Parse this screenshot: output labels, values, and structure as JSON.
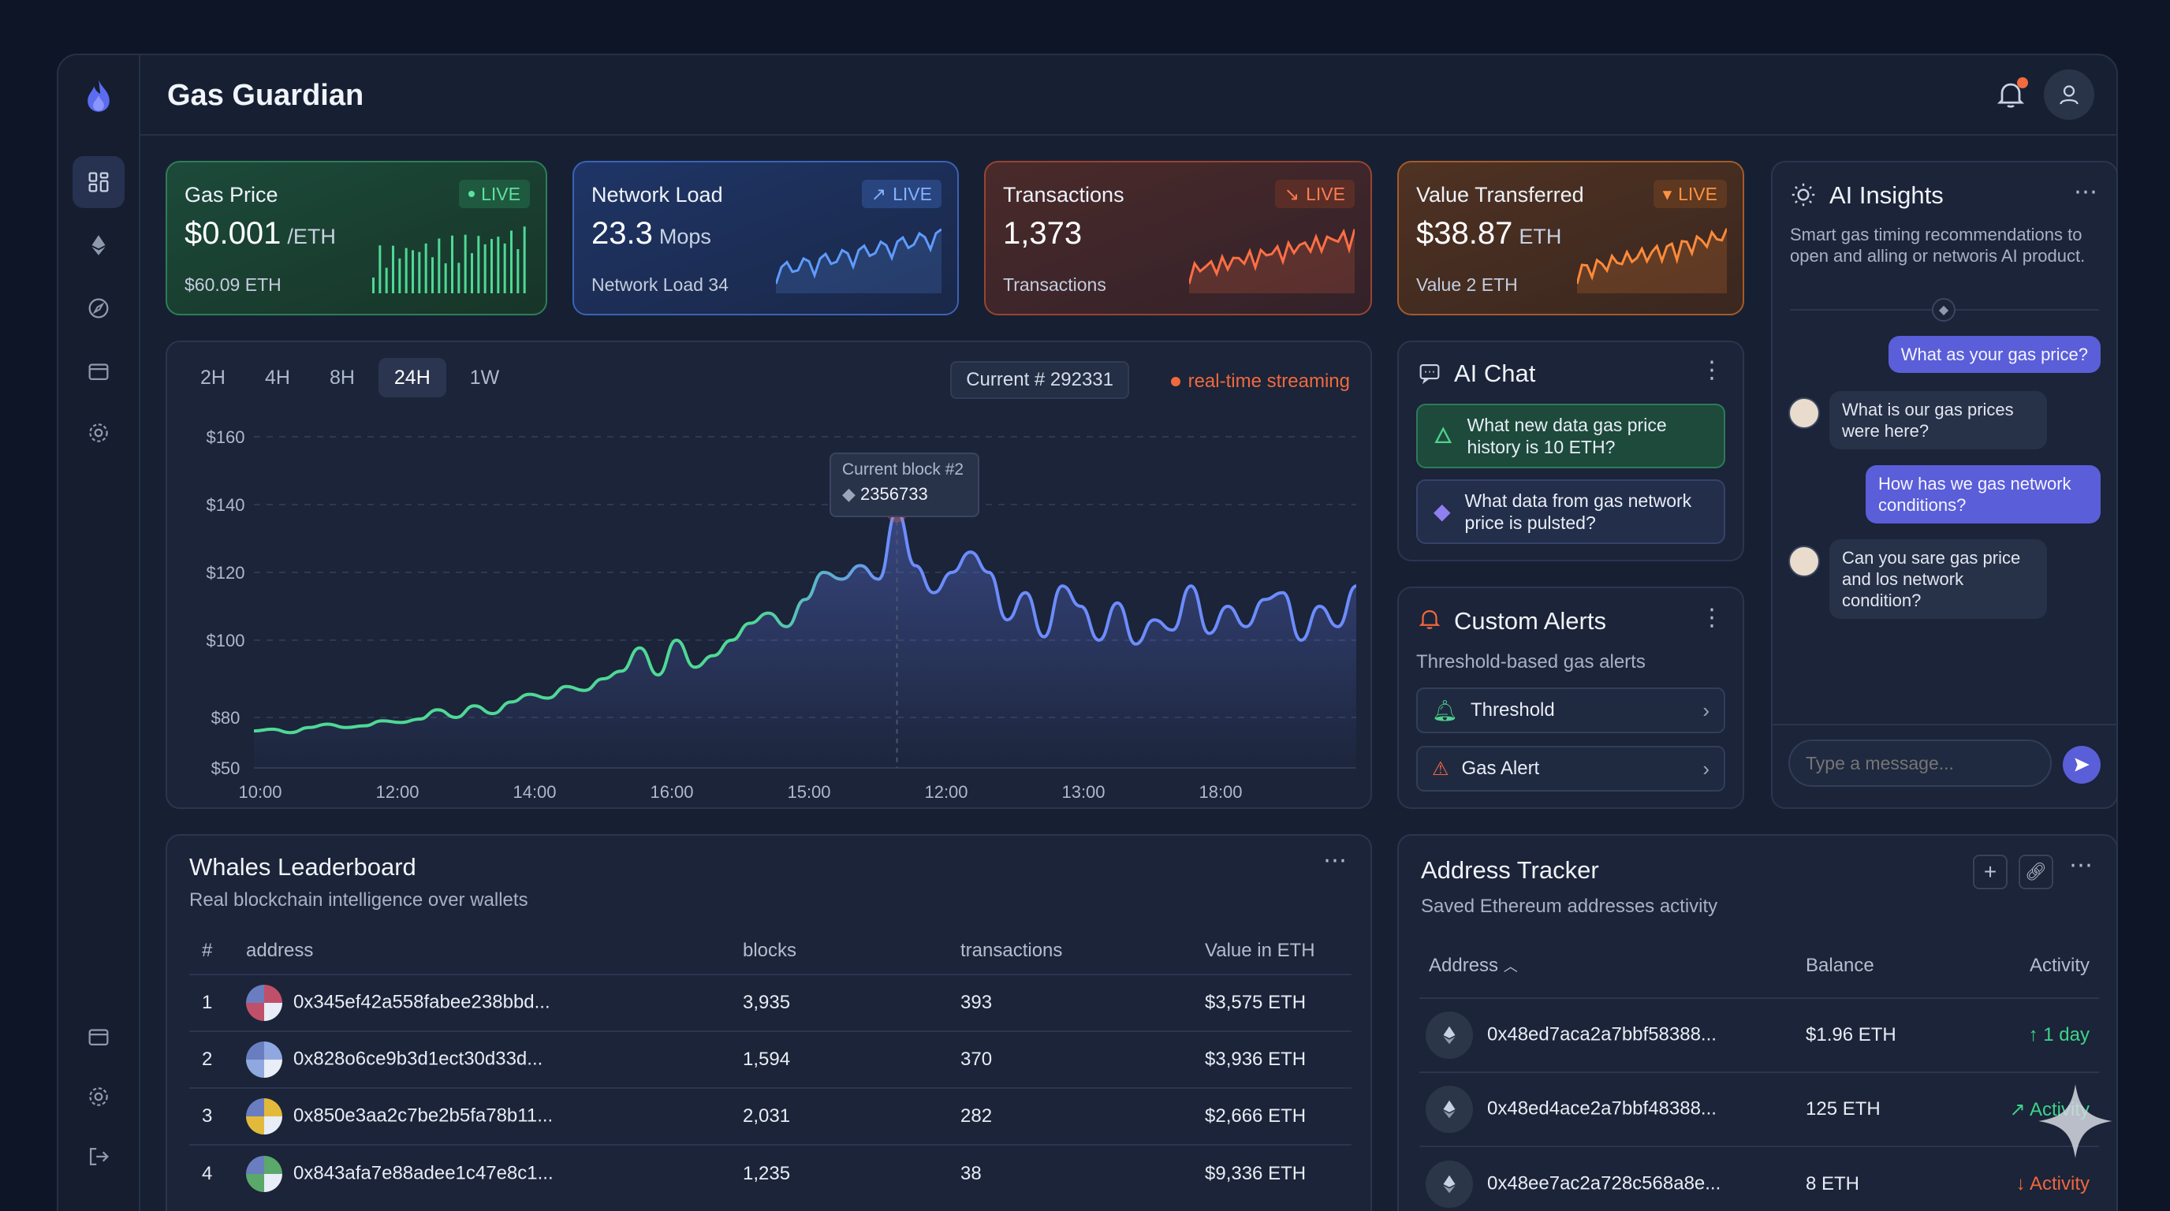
{
  "app": {
    "title": "Gas Guardian"
  },
  "stats": [
    {
      "label": "Gas Price",
      "value": "$0.001",
      "unit": "/ETH",
      "sub": "$60.09 ETH",
      "live": "LIVE",
      "accent": "#3fd28a"
    },
    {
      "label": "Network Load",
      "value": "23.3",
      "unit": "Mops",
      "sub": "Network Load 34",
      "live": "LIVE",
      "accent": "#4d8df0"
    },
    {
      "label": "Transactions",
      "value": "1,373",
      "unit": "",
      "sub": "Transactions",
      "live": "LIVE",
      "accent": "#f0663d"
    },
    {
      "label": "Value Transferred",
      "value": "$38.87",
      "unit": "ETH",
      "sub": "Value 2 ETH",
      "live": "LIVE",
      "accent": "#f07a2a"
    }
  ],
  "chart_panel": {
    "tabs": [
      "2H",
      "4H",
      "8H",
      "24H",
      "1W"
    ],
    "active_tab": "24H",
    "current_chip": "Current # 292331",
    "streaming": "real-time streaming",
    "tooltip_title": "Current block #2",
    "tooltip_value": "2356733"
  },
  "chart_data": {
    "type": "line",
    "title": "",
    "xlabel": "",
    "ylabel": "",
    "x_ticks": [
      "10:00",
      "12:00",
      "14:00",
      "16:00",
      "15:00",
      "12:00",
      "13:00",
      "18:00"
    ],
    "y_ticks": [
      "$160",
      "$140",
      "$120",
      "$100",
      "$80",
      "$50"
    ],
    "grid": true,
    "series": [
      {
        "values": [
          72,
          73,
          71,
          74,
          76,
          74,
          75,
          78,
          77,
          79,
          82,
          80,
          83,
          81,
          84,
          86,
          85,
          88,
          87,
          90,
          92,
          98,
          91,
          100,
          93,
          96,
          100,
          105,
          108,
          104,
          112,
          120,
          118,
          122,
          118,
          138,
          122,
          114,
          120,
          126,
          120,
          106,
          114,
          101,
          116,
          110,
          100,
          111,
          99,
          106,
          103,
          116,
          102,
          110,
          104,
          112,
          114,
          100,
          110,
          104,
          116
        ]
      }
    ],
    "highlight_index": 35
  },
  "ai_chat": {
    "title": "AI Chat",
    "items": [
      {
        "text": "What new data gas price history is 10 ETH?"
      },
      {
        "text": "What data from gas network price is pulsted?"
      }
    ]
  },
  "alerts": {
    "title": "Custom Alerts",
    "subtitle": "Threshold-based gas alerts",
    "rows": [
      {
        "label": "Threshold"
      },
      {
        "label": "Gas Alert"
      }
    ]
  },
  "insights": {
    "title": "AI Insights",
    "description": "Smart gas timing recommendations to open and alling or networis AI product.",
    "messages": [
      {
        "role": "user",
        "text": "What as your gas price?"
      },
      {
        "role": "bot",
        "text": "What is our gas prices were here?"
      },
      {
        "role": "user",
        "text": "How has we gas network conditions?"
      },
      {
        "role": "bot",
        "text": "Can you sare gas price and los network condition?"
      }
    ],
    "input_placeholder": "Type a message..."
  },
  "whales": {
    "title": "Whales Leaderboard",
    "subtitle": "Real blockchain intelligence over wallets",
    "columns": [
      "#",
      "address",
      "blocks",
      "transactions",
      "Value in ETH"
    ],
    "rows": [
      {
        "rank": "1",
        "address": "0x345ef42a558fabee238bbd...",
        "blocks": "3,935",
        "tx": "393",
        "value": "$3,575 ETH",
        "color": "#c0506a"
      },
      {
        "rank": "2",
        "address": "0x828o6ce9b3d1ect30d33d...",
        "blocks": "1,594",
        "tx": "370",
        "value": "$3,936 ETH",
        "color": "#8fa8e0"
      },
      {
        "rank": "3",
        "address": "0x850e3aa2c7be2b5fa78b11...",
        "blocks": "2,031",
        "tx": "282",
        "value": "$2,666 ETH",
        "color": "#e2b93a"
      },
      {
        "rank": "4",
        "address": "0x843afa7e88adee1c47e8c1...",
        "blocks": "1,235",
        "tx": "38",
        "value": "$9,336 ETH",
        "color": "#5aa86a"
      }
    ]
  },
  "tracker": {
    "title": "Address Tracker",
    "subtitle": "Saved Ethereum addresses activity",
    "columns": [
      "Address",
      "Balance",
      "Activity"
    ],
    "rows": [
      {
        "address": "0x48ed7aca2a7bbf58388...",
        "balance": "$1.96 ETH",
        "activity": "1 day",
        "color": "#3fd28a",
        "arrow": "↑"
      },
      {
        "address": "0x48ed4ace2a7bbf48388...",
        "balance": "125 ETH",
        "activity": "Activity",
        "color": "#3fd28a",
        "arrow": "↗"
      },
      {
        "address": "0x48ee7ac2a728c568a8e...",
        "balance": "8 ETH",
        "activity": "Activity",
        "color": "#f0663d",
        "arrow": "↓"
      }
    ]
  }
}
